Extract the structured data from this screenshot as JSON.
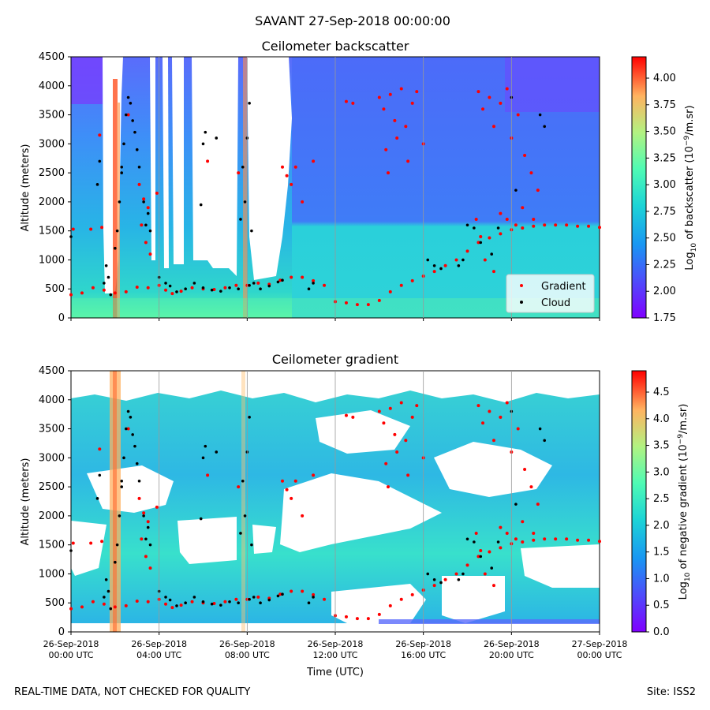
{
  "suptitle": "SAVANT 27-Sep-2018 00:00:00",
  "footer_left": "REAL-TIME DATA, NOT CHECKED FOR QUALITY",
  "footer_right": "Site: ISS2",
  "x_tick_date_labels": [
    "26-Sep-2018",
    "26-Sep-2018",
    "26-Sep-2018",
    "26-Sep-2018",
    "26-Sep-2018",
    "26-Sep-2018",
    "27-Sep-2018"
  ],
  "x_tick_time_labels": [
    "00:00 UTC",
    "04:00 UTC",
    "08:00 UTC",
    "12:00 UTC",
    "16:00 UTC",
    "20:00 UTC",
    "00:00 UTC"
  ],
  "chart_data": [
    {
      "type": "heatmap",
      "title": "Ceilometer backscatter",
      "ylabel": "Altitude (meters)",
      "xlabel": "",
      "xlim_hours": [
        0,
        24
      ],
      "ylim": [
        0,
        4500
      ],
      "yticks": [
        0,
        500,
        1000,
        1500,
        2000,
        2500,
        3000,
        3500,
        4000,
        4500
      ],
      "colorbar": {
        "label_prefix": "Log",
        "label_sub": "10",
        "label_mid": " of backscatter (10",
        "label_sup": "−9",
        "label_suffix": "/m.sr)",
        "range": [
          1.75,
          4.2
        ],
        "ticks": [
          "1.75",
          "2.00",
          "2.25",
          "2.50",
          "2.75",
          "3.00",
          "3.25",
          "3.50",
          "3.75",
          "4.00"
        ],
        "tick_values": [
          1.75,
          2.0,
          2.25,
          2.5,
          2.75,
          3.0,
          3.25,
          3.5,
          3.75,
          4.0
        ],
        "colormap": "rainbow"
      },
      "legend": {
        "placement": "lower-right",
        "entries": [
          {
            "label": "Gradient",
            "color": "#ff0000"
          },
          {
            "label": "Cloud",
            "color": "#000000"
          }
        ]
      },
      "gradient_points": [
        [
          0.0,
          400
        ],
        [
          0.5,
          430
        ],
        [
          1.0,
          520
        ],
        [
          1.5,
          480
        ],
        [
          2.0,
          430
        ],
        [
          2.5,
          450
        ],
        [
          3.0,
          530
        ],
        [
          3.5,
          520
        ],
        [
          4.0,
          560
        ],
        [
          4.3,
          480
        ],
        [
          4.6,
          420
        ],
        [
          5.0,
          460
        ],
        [
          5.5,
          520
        ],
        [
          6.0,
          500
        ],
        [
          6.5,
          490
        ],
        [
          7.0,
          520
        ],
        [
          7.5,
          560
        ],
        [
          8.0,
          560
        ],
        [
          8.5,
          600
        ],
        [
          9.0,
          580
        ],
        [
          9.5,
          650
        ],
        [
          10.0,
          700
        ],
        [
          10.5,
          700
        ],
        [
          11.0,
          640
        ],
        [
          11.5,
          560
        ],
        [
          12.0,
          280
        ],
        [
          12.5,
          260
        ],
        [
          13.0,
          230
        ],
        [
          13.5,
          230
        ],
        [
          14.0,
          300
        ],
        [
          14.5,
          450
        ],
        [
          15.0,
          560
        ],
        [
          15.5,
          640
        ],
        [
          16.0,
          720
        ],
        [
          16.5,
          800
        ],
        [
          17.0,
          900
        ],
        [
          17.5,
          1000
        ],
        [
          18.0,
          1150
        ],
        [
          18.5,
          1300
        ],
        [
          19.0,
          1380
        ],
        [
          19.5,
          1450
        ],
        [
          20.0,
          1520
        ],
        [
          20.5,
          1550
        ],
        [
          21.0,
          1580
        ],
        [
          21.5,
          1600
        ],
        [
          22.0,
          1600
        ],
        [
          22.5,
          1600
        ],
        [
          23.0,
          1580
        ],
        [
          23.5,
          1580
        ],
        [
          24.0,
          1560
        ],
        [
          0.1,
          1530
        ],
        [
          0.9,
          1530
        ],
        [
          1.4,
          1560
        ],
        [
          3.1,
          2300
        ],
        [
          3.3,
          2050
        ],
        [
          3.5,
          1900
        ],
        [
          3.2,
          1600
        ],
        [
          3.4,
          1300
        ],
        [
          3.6,
          1100
        ],
        [
          3.9,
          2150
        ],
        [
          9.6,
          2600
        ],
        [
          9.8,
          2450
        ],
        [
          10.0,
          2300
        ],
        [
          10.2,
          2600
        ],
        [
          10.5,
          2000
        ],
        [
          11.0,
          2700
        ],
        [
          14.0,
          3800
        ],
        [
          14.2,
          3600
        ],
        [
          14.5,
          3850
        ],
        [
          14.7,
          3400
        ],
        [
          15.0,
          3950
        ],
        [
          15.2,
          3300
        ],
        [
          15.5,
          3700
        ],
        [
          15.7,
          3900
        ],
        [
          16.0,
          3000
        ],
        [
          14.4,
          2500
        ],
        [
          14.8,
          3100
        ],
        [
          15.3,
          2700
        ],
        [
          18.5,
          3900
        ],
        [
          18.7,
          3600
        ],
        [
          19.0,
          3800
        ],
        [
          19.2,
          3300
        ],
        [
          19.5,
          3700
        ],
        [
          19.8,
          3950
        ],
        [
          20.0,
          3100
        ],
        [
          20.3,
          3500
        ],
        [
          20.6,
          2800
        ],
        [
          20.9,
          2500
        ],
        [
          21.2,
          2200
        ],
        [
          19.5,
          1800
        ],
        [
          19.8,
          1700
        ],
        [
          20.2,
          1600
        ],
        [
          20.5,
          1900
        ],
        [
          21.0,
          1700
        ],
        [
          18.4,
          1700
        ],
        [
          18.6,
          1400
        ],
        [
          18.8,
          1000
        ],
        [
          19.2,
          800
        ],
        [
          12.5,
          3730
        ],
        [
          12.8,
          3700
        ],
        [
          14.3,
          2900
        ],
        [
          2.6,
          3500
        ],
        [
          1.3,
          3150
        ],
        [
          6.2,
          2700
        ],
        [
          7.6,
          2500
        ]
      ],
      "cloud_points": [
        [
          1.5,
          600
        ],
        [
          1.6,
          900
        ],
        [
          1.7,
          700
        ],
        [
          1.8,
          400
        ],
        [
          2.0,
          1200
        ],
        [
          2.1,
          1500
        ],
        [
          2.2,
          2000
        ],
        [
          2.3,
          2500
        ],
        [
          2.4,
          3000
        ],
        [
          2.5,
          3500
        ],
        [
          2.6,
          3800
        ],
        [
          2.7,
          3700
        ],
        [
          2.8,
          3400
        ],
        [
          2.9,
          3200
        ],
        [
          3.0,
          2900
        ],
        [
          3.1,
          2600
        ],
        [
          3.3,
          2000
        ],
        [
          3.5,
          1800
        ],
        [
          3.4,
          1600
        ],
        [
          3.6,
          1500
        ],
        [
          4.0,
          700
        ],
        [
          4.3,
          600
        ],
        [
          4.5,
          550
        ],
        [
          4.8,
          450
        ],
        [
          5.2,
          500
        ],
        [
          5.6,
          600
        ],
        [
          6.0,
          520
        ],
        [
          6.4,
          480
        ],
        [
          6.8,
          460
        ],
        [
          7.2,
          520
        ],
        [
          7.6,
          500
        ],
        [
          8.1,
          560
        ],
        [
          8.3,
          600
        ],
        [
          8.6,
          500
        ],
        [
          9.0,
          550
        ],
        [
          9.4,
          620
        ],
        [
          9.6,
          650
        ],
        [
          8.1,
          3700
        ],
        [
          8.0,
          3100
        ],
        [
          7.8,
          2600
        ],
        [
          7.9,
          2000
        ],
        [
          8.2,
          1500
        ],
        [
          7.7,
          1700
        ],
        [
          6.0,
          3000
        ],
        [
          6.1,
          3200
        ],
        [
          6.6,
          3100
        ],
        [
          5.9,
          1950
        ],
        [
          1.2,
          2300
        ],
        [
          1.3,
          2700
        ],
        [
          2.3,
          2600
        ],
        [
          16.2,
          1000
        ],
        [
          16.5,
          900
        ],
        [
          16.8,
          850
        ],
        [
          17.6,
          900
        ],
        [
          17.8,
          1000
        ],
        [
          18.0,
          1600
        ],
        [
          18.3,
          1550
        ],
        [
          18.6,
          1300
        ],
        [
          19.1,
          1100
        ],
        [
          19.4,
          1550
        ],
        [
          20.0,
          3800
        ],
        [
          20.2,
          2200
        ],
        [
          21.3,
          3500
        ],
        [
          21.5,
          3300
        ],
        [
          10.8,
          500
        ],
        [
          11.0,
          600
        ],
        [
          0.0,
          1400
        ]
      ]
    },
    {
      "type": "heatmap",
      "title": "Ceilometer gradient",
      "ylabel": "Altitude (meters)",
      "xlabel": "Time (UTC)",
      "xlim_hours": [
        0,
        24
      ],
      "ylim": [
        0,
        4500
      ],
      "yticks": [
        0,
        500,
        1000,
        1500,
        2000,
        2500,
        3000,
        3500,
        4000,
        4500
      ],
      "colorbar": {
        "label_prefix": "Log",
        "label_sub": "10",
        "label_mid": " of negative gradient (10",
        "label_sup": "−9",
        "label_suffix": "/m.sr)",
        "range": [
          0.0,
          4.9
        ],
        "ticks": [
          "0.0",
          "0.5",
          "1.0",
          "1.5",
          "2.0",
          "2.5",
          "3.0",
          "3.5",
          "4.0",
          "4.5"
        ],
        "tick_values": [
          0.0,
          0.5,
          1.0,
          1.5,
          2.0,
          2.5,
          3.0,
          3.5,
          4.0,
          4.5
        ],
        "colormap": "rainbow"
      }
    }
  ]
}
